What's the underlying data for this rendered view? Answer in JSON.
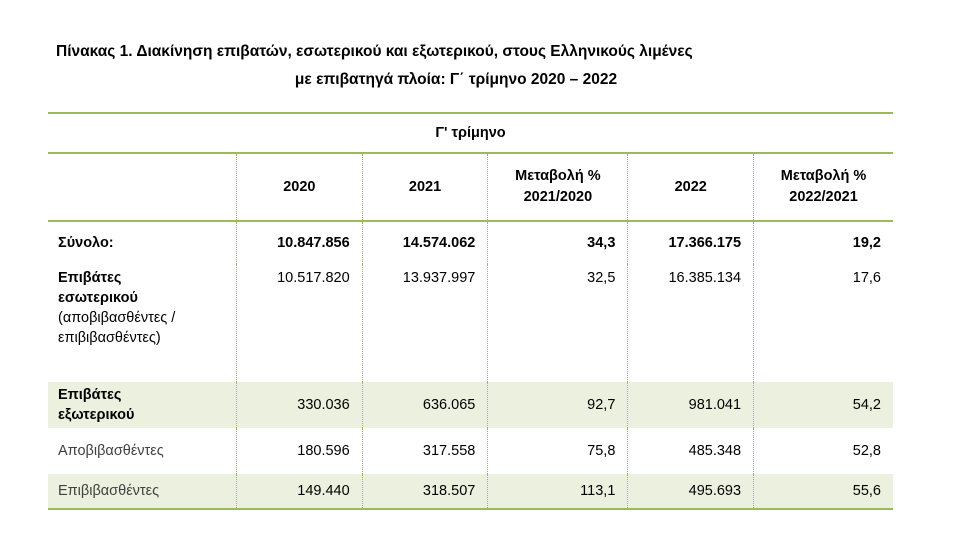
{
  "title": {
    "line1": "Πίνακας 1. Διακίνηση επιβατών, εσωτερικού και εξωτερικού, στους Ελληνικούς λιμένες",
    "line2": "με επιβατηγά πλοία: Γ΄ τρίμηνο 2020 – 2022"
  },
  "table": {
    "group_header": "Γ' τρίμηνο",
    "columns": [
      [
        "2020"
      ],
      [
        "2021"
      ],
      [
        "Μεταβολή %",
        "2021/2020"
      ],
      [
        "2022"
      ],
      [
        "Μεταβολή %",
        "2022/2021"
      ]
    ],
    "rows": [
      {
        "label": [
          "Σύνολο:"
        ],
        "values": [
          "10.847.856",
          "14.574.062",
          "34,3",
          "17.366.175",
          "19,2"
        ]
      },
      {
        "label": [
          "Επιβάτες",
          "εσωτερικού"
        ],
        "sublabel": [
          "(αποβιβασθέντες /",
          "επιβιβασθέντες)"
        ],
        "values": [
          "10.517.820",
          "13.937.997",
          "32,5",
          "16.385.134",
          "17,6"
        ]
      },
      {
        "label": [
          "Επιβάτες",
          "εξωτερικού"
        ],
        "values": [
          "330.036",
          "636.065",
          "92,7",
          "981.041",
          "54,2"
        ]
      },
      {
        "label": [
          "Αποβιβασθέντες"
        ],
        "values": [
          "180.596",
          "317.558",
          "75,8",
          "485.348",
          "52,8"
        ]
      },
      {
        "label": [
          "Επιβιβασθέντες"
        ],
        "values": [
          "149.440",
          "318.507",
          "113,1",
          "495.693",
          "55,6"
        ]
      }
    ]
  }
}
